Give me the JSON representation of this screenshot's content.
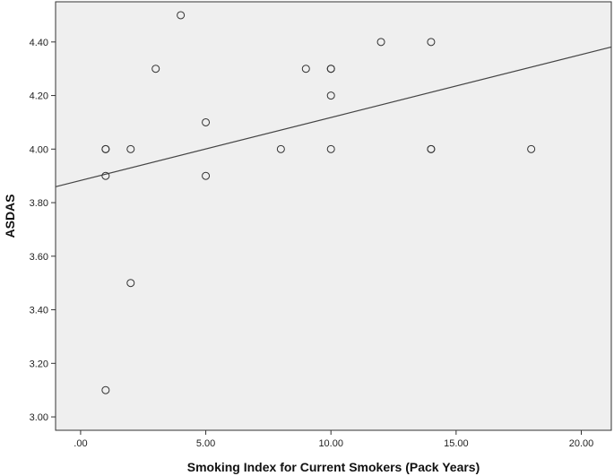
{
  "chart_data": {
    "type": "scatter",
    "xlabel": "Smoking Index for Current Smokers (Pack Years)",
    "ylabel": "ASDAS",
    "xlim": [
      -1.0,
      21.2
    ],
    "ylim": [
      2.95,
      4.55
    ],
    "x_ticks": [
      0,
      5,
      10,
      15,
      20
    ],
    "x_tick_labels": [
      ".00",
      "5.00",
      "10.00",
      "15.00",
      "20.00"
    ],
    "y_ticks": [
      3.0,
      3.2,
      3.4,
      3.6,
      3.8,
      4.0,
      4.2,
      4.4
    ],
    "y_tick_labels": [
      "3.00",
      "3.20",
      "3.40",
      "3.60",
      "3.80",
      "4.00",
      "4.20",
      "4.40"
    ],
    "grid": false,
    "legend": "none",
    "colors": {
      "plot_background": "#efefef",
      "marker_stroke": "#333333",
      "fit_line": "#444444"
    },
    "points": [
      {
        "x": 1,
        "y": 4.0
      },
      {
        "x": 1,
        "y": 4.0
      },
      {
        "x": 1,
        "y": 3.9
      },
      {
        "x": 1,
        "y": 3.1
      },
      {
        "x": 2,
        "y": 4.0
      },
      {
        "x": 2,
        "y": 3.5
      },
      {
        "x": 3,
        "y": 4.3
      },
      {
        "x": 4,
        "y": 4.5
      },
      {
        "x": 5,
        "y": 4.1
      },
      {
        "x": 5,
        "y": 3.9
      },
      {
        "x": 8,
        "y": 4.0
      },
      {
        "x": 9,
        "y": 4.3
      },
      {
        "x": 10,
        "y": 4.3
      },
      {
        "x": 10,
        "y": 4.3
      },
      {
        "x": 10,
        "y": 4.2
      },
      {
        "x": 10,
        "y": 4.0
      },
      {
        "x": 12,
        "y": 4.4
      },
      {
        "x": 14,
        "y": 4.4
      },
      {
        "x": 14,
        "y": 4.0
      },
      {
        "x": 14,
        "y": 4.0
      },
      {
        "x": 18,
        "y": 4.0
      }
    ],
    "fit_line": {
      "intercept": 3.883,
      "slope": 0.0235
    }
  }
}
